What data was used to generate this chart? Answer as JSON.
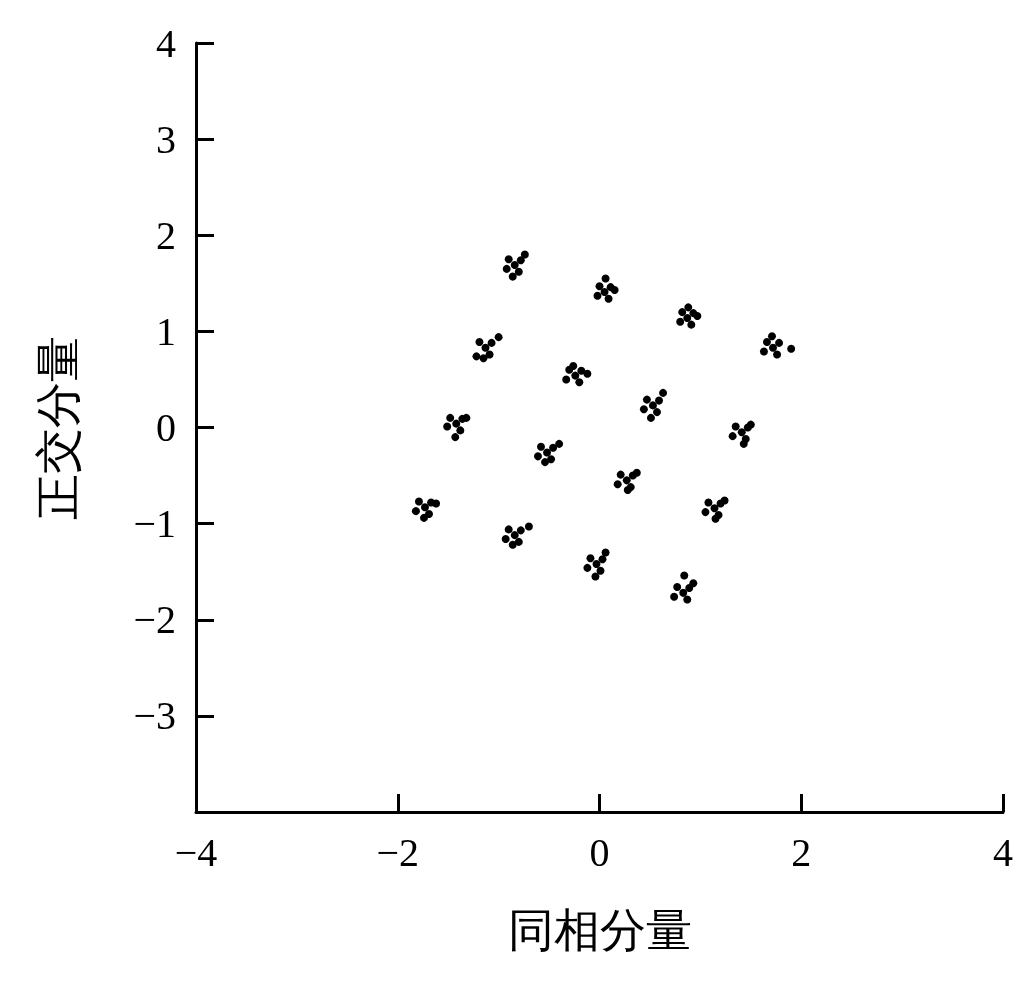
{
  "chart_data": {
    "type": "scatter",
    "xlabel": "同相分量",
    "ylabel": "正交分量",
    "xlim": [
      -4,
      4
    ],
    "ylim": [
      -4,
      4
    ],
    "xticks": [
      {
        "value": -4,
        "label": "−4"
      },
      {
        "value": -2,
        "label": "−2"
      },
      0,
      2,
      4
    ],
    "yticks": [
      {
        "value": -3,
        "label": "−3"
      },
      {
        "value": -2,
        "label": "−2"
      },
      {
        "value": -1,
        "label": "−1"
      },
      0,
      1,
      2,
      3,
      4
    ],
    "marker": "circle",
    "series": [
      {
        "color": "#000000",
        "x": [
          -0.84,
          -0.78,
          -0.9,
          -0.8,
          -0.92,
          -0.74,
          -0.86,
          0.05,
          0.11,
          0.0,
          0.09,
          -0.02,
          0.15,
          0.06,
          0.87,
          0.93,
          0.82,
          0.91,
          0.8,
          0.97,
          0.88,
          1.72,
          1.78,
          1.66,
          1.76,
          1.63,
          1.9,
          1.71,
          -1.13,
          -1.07,
          -1.19,
          -1.09,
          -1.22,
          -1.0,
          -1.15,
          -0.24,
          -0.18,
          -0.3,
          -0.2,
          -0.33,
          -0.12,
          -0.26,
          0.53,
          0.59,
          0.47,
          0.57,
          0.44,
          0.63,
          0.51,
          1.41,
          1.47,
          1.35,
          1.45,
          1.32,
          1.5,
          1.43,
          -1.42,
          -1.36,
          -1.48,
          -1.38,
          -1.51,
          -1.32,
          -1.43,
          -0.52,
          -0.46,
          -0.58,
          -0.48,
          -0.61,
          -0.4,
          -0.54,
          0.27,
          0.33,
          0.21,
          0.31,
          0.18,
          0.37,
          0.28,
          1.14,
          1.2,
          1.08,
          1.18,
          1.05,
          1.24,
          1.15,
          -1.73,
          -1.67,
          -1.79,
          -1.69,
          -1.82,
          -1.62,
          -1.74,
          -0.84,
          -0.78,
          -0.9,
          -0.8,
          -0.93,
          -0.7,
          -0.86,
          -0.03,
          0.03,
          -0.09,
          0.01,
          -0.12,
          0.06,
          -0.04,
          0.83,
          0.89,
          0.77,
          0.87,
          0.74,
          0.93,
          0.84
        ],
        "values": [
          1.69,
          1.74,
          1.75,
          1.62,
          1.65,
          1.8,
          1.57,
          1.41,
          1.46,
          1.47,
          1.34,
          1.37,
          1.43,
          1.55,
          1.14,
          1.19,
          1.2,
          1.07,
          1.1,
          1.16,
          1.25,
          0.83,
          0.88,
          0.89,
          0.76,
          0.79,
          0.82,
          0.95,
          0.83,
          0.88,
          0.89,
          0.76,
          0.74,
          0.94,
          0.72,
          0.54,
          0.59,
          0.6,
          0.47,
          0.5,
          0.56,
          0.64,
          0.23,
          0.28,
          0.29,
          0.16,
          0.19,
          0.36,
          0.1,
          -0.05,
          0.0,
          0.01,
          -0.12,
          -0.09,
          0.03,
          -0.17,
          0.04,
          0.09,
          0.1,
          -0.03,
          0.01,
          0.1,
          -0.1,
          -0.26,
          -0.21,
          -0.2,
          -0.33,
          -0.3,
          -0.17,
          -0.36,
          -0.55,
          -0.5,
          -0.49,
          -0.62,
          -0.59,
          -0.47,
          -0.65,
          -0.84,
          -0.79,
          -0.78,
          -0.91,
          -0.88,
          -0.76,
          -0.95,
          -0.83,
          -0.78,
          -0.77,
          -0.9,
          -0.87,
          -0.79,
          -0.94,
          -1.12,
          -1.07,
          -1.06,
          -1.19,
          -1.16,
          -1.03,
          -1.22,
          -1.42,
          -1.37,
          -1.36,
          -1.49,
          -1.46,
          -1.3,
          -1.55,
          -1.72,
          -1.67,
          -1.66,
          -1.79,
          -1.76,
          -1.62,
          -1.54
        ]
      }
    ]
  }
}
